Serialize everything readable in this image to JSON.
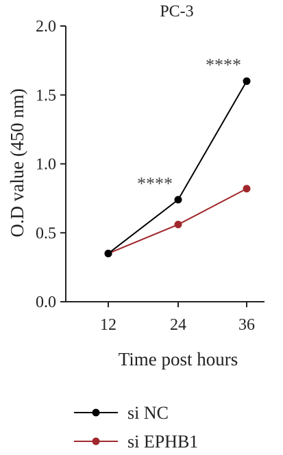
{
  "chart_data": {
    "type": "line",
    "title": "PC-3",
    "xlabel": "Time post hours",
    "ylabel": "O.D value (450 nm)",
    "x": [
      12,
      24,
      36
    ],
    "x_tick_labels": [
      "12",
      "24",
      "36"
    ],
    "ylim": [
      0.0,
      2.0
    ],
    "y_ticks": [
      0.0,
      0.5,
      1.0,
      1.5,
      2.0
    ],
    "y_tick_labels": [
      "0.0",
      "0.5",
      "1.0",
      "1.5",
      "2.0"
    ],
    "series": [
      {
        "name": "si NC",
        "values": [
          0.35,
          0.74,
          1.6
        ],
        "color": "#000000"
      },
      {
        "name": "si EPHB1",
        "values": [
          0.35,
          0.56,
          0.82
        ],
        "color": "#a0282c"
      }
    ],
    "annotations": [
      {
        "text": "****",
        "x": 24
      },
      {
        "text": "****",
        "x": 36
      }
    ],
    "legend_position": "bottom",
    "grid": false
  }
}
